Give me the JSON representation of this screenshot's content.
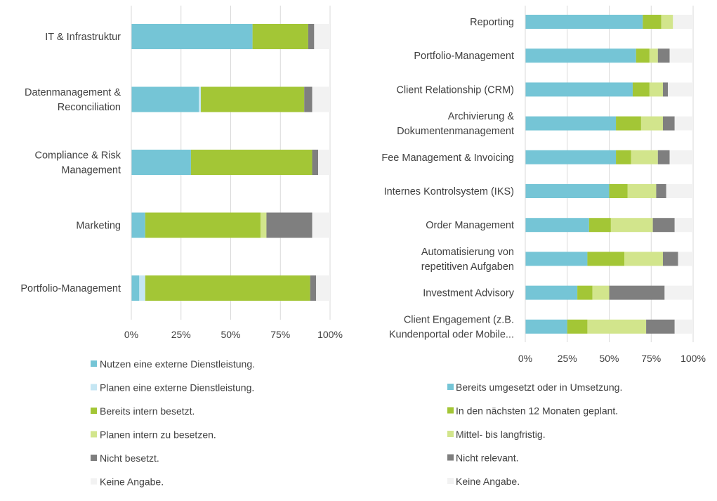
{
  "chart_data": [
    {
      "type": "bar",
      "orientation": "horizontal",
      "stacked": true,
      "normalized": true,
      "categories": [
        [
          "IT & Infrastruktur"
        ],
        [
          "Datenmanagement &",
          "Reconciliation"
        ],
        [
          "Compliance & Risk",
          "Management"
        ],
        [
          "Marketing"
        ],
        [
          "Portfolio-Management"
        ]
      ],
      "series": [
        {
          "name": "Nutzen eine externe Dienstleistung.",
          "color": "#75c5d6",
          "values": [
            61,
            34,
            30,
            7,
            4
          ]
        },
        {
          "name": "Planen eine externe Dienstleistung.",
          "color": "#c5e6f3",
          "values": [
            0,
            1,
            0,
            0,
            3
          ]
        },
        {
          "name": "Bereits intern besetzt.",
          "color": "#a3c636",
          "values": [
            28,
            52,
            61,
            58,
            83
          ]
        },
        {
          "name": "Planen intern zu besetzen.",
          "color": "#d2e58c",
          "values": [
            0,
            0,
            0,
            3,
            0
          ]
        },
        {
          "name": "Nicht besetzt.",
          "color": "#7f7f7f",
          "values": [
            3,
            4,
            3,
            23,
            3
          ]
        },
        {
          "name": "Keine Angabe.",
          "color": "#f2f2f2",
          "values": [
            8,
            9,
            6,
            9,
            7
          ]
        }
      ],
      "xticks": [
        "0%",
        "25%",
        "50%",
        "75%",
        "100%"
      ],
      "xlim": [
        0,
        100
      ],
      "grid": true,
      "legend_position": "bottom"
    },
    {
      "type": "bar",
      "orientation": "horizontal",
      "stacked": true,
      "normalized": true,
      "categories": [
        [
          "Reporting"
        ],
        [
          "Portfolio-Management"
        ],
        [
          "Client Relationship (CRM)"
        ],
        [
          "Archivierung &",
          "Dokumentenmanagement"
        ],
        [
          "Fee Management & Invoicing"
        ],
        [
          "Internes Kontrolsystem (IKS)"
        ],
        [
          "Order Management"
        ],
        [
          "Automatisierung von",
          "repetitiven Aufgaben"
        ],
        [
          "Investment Advisory"
        ],
        [
          "Client Engagement (z.B.",
          "Kundenportal oder Mobile..."
        ]
      ],
      "series": [
        {
          "name": "Bereits umgesetzt oder in Umsetzung.",
          "color": "#75c5d6",
          "values": [
            70,
            66,
            64,
            54,
            54,
            50,
            38,
            37,
            31,
            25
          ]
        },
        {
          "name": "In den nächsten 12 Monaten geplant.",
          "color": "#a3c636",
          "values": [
            11,
            8,
            10,
            15,
            9,
            11,
            13,
            22,
            9,
            12
          ]
        },
        {
          "name": "Mittel- bis langfristig.",
          "color": "#d2e58c",
          "values": [
            7,
            5,
            8,
            13,
            16,
            17,
            25,
            23,
            10,
            35
          ]
        },
        {
          "name": "Nicht relevant.",
          "color": "#7f7f7f",
          "values": [
            0,
            7,
            3,
            7,
            7,
            6,
            13,
            9,
            33,
            17
          ]
        },
        {
          "name": "Keine Angabe.",
          "color": "#f2f2f2",
          "values": [
            12,
            14,
            15,
            11,
            14,
            16,
            11,
            9,
            17,
            11
          ]
        }
      ],
      "xticks": [
        "0%",
        "25%",
        "50%",
        "75%",
        "100%"
      ],
      "xlim": [
        0,
        100
      ],
      "grid": true,
      "legend_position": "bottom"
    }
  ]
}
